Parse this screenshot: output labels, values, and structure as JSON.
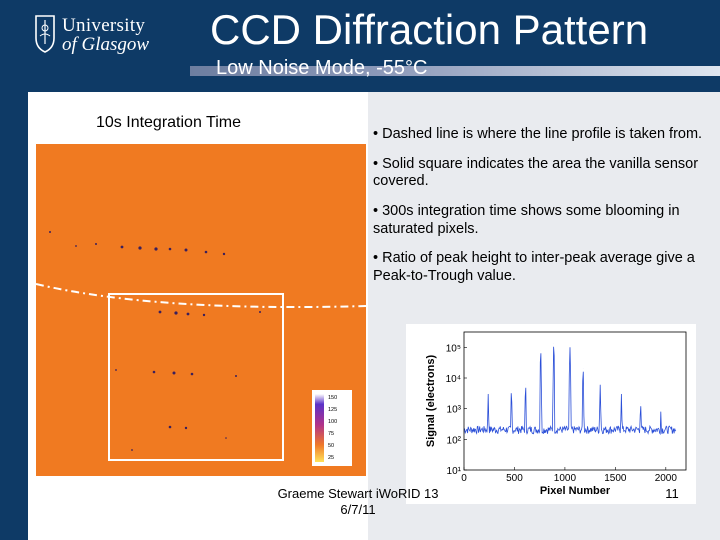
{
  "header": {
    "logo_line1": "University",
    "logo_line2": "of Glasgow",
    "title": "CCD Diffraction Pattern",
    "subtitle": "Low Noise Mode, -55°C"
  },
  "image": {
    "caption": "10s Integration Time",
    "colorbar_ticks": [
      "150",
      "125",
      "100",
      "75",
      "50",
      "25"
    ]
  },
  "bullets": [
    "• Dashed line is where the line profile is taken from.",
    "• Solid square indicates the area the vanilla sensor covered.",
    "• 300s integration time shows some blooming in saturated pixels.",
    "• Ratio of peak height to inter-peak average give a Peak-to-Trough value."
  ],
  "chart_data": {
    "type": "line",
    "title": "",
    "xlabel": "Pixel Number",
    "ylabel": "Signal (electrons)",
    "xlim": [
      0,
      2200
    ],
    "ylim_log10": [
      1,
      5.5
    ],
    "y_scale": "log",
    "x_ticks": [
      "0",
      "500",
      "1000",
      "1500",
      "2000"
    ],
    "y_ticks": [
      "10¹",
      "10²",
      "10³",
      "10⁴",
      "10⁵"
    ],
    "y_tick_exponents": [
      1,
      2,
      3,
      4,
      5
    ],
    "x_tick_values": [
      0,
      500,
      1000,
      1500,
      2000
    ],
    "baseline": 200,
    "peaks": [
      {
        "x": 240,
        "y": 3000
      },
      {
        "x": 470,
        "y": 4000
      },
      {
        "x": 610,
        "y": 6000
      },
      {
        "x": 760,
        "y": 80000
      },
      {
        "x": 890,
        "y": 130000
      },
      {
        "x": 1050,
        "y": 100000
      },
      {
        "x": 1180,
        "y": 20000
      },
      {
        "x": 1350,
        "y": 6000
      },
      {
        "x": 1560,
        "y": 3000
      },
      {
        "x": 1750,
        "y": 1500
      },
      {
        "x": 1950,
        "y": 800
      }
    ],
    "series_color": "#2b4fd8",
    "grid": false
  },
  "footer": {
    "text_line1": "Graeme Stewart iWoRID 13",
    "text_line2": "6/7/11",
    "page_number": "11"
  }
}
